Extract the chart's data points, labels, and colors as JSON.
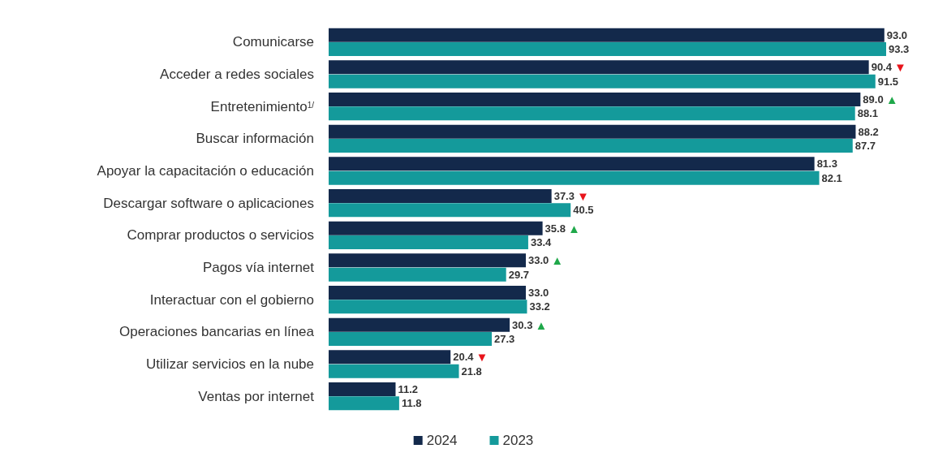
{
  "chart_data": {
    "type": "bar",
    "orientation": "horizontal",
    "categories": [
      "Comunicarse",
      "Acceder a redes sociales",
      "Entretenimiento$^{1/}$",
      "Buscar información",
      "Apoyar la capacitación o educación",
      "Descargar software o aplicaciones",
      "Comprar productos o servicios",
      "Pagos vía internet",
      "Interactuar con el gobierno",
      "Operaciones bancarias en línea",
      "Utilizar servicios en la nube",
      "Ventas por internet"
    ],
    "series": [
      {
        "name": "2024",
        "color": "#13294b",
        "values": [
          93.0,
          90.4,
          89.0,
          88.2,
          81.3,
          37.3,
          35.8,
          33.0,
          33.0,
          30.3,
          20.4,
          11.2
        ],
        "value_labels": [
          "93.0",
          "90.4 ▼",
          "89.0 ▲",
          "88.2",
          "81.3",
          "37.3 ▼",
          "35.8 ▲",
          "33.0 ▲",
          "33.0",
          "30.3 ▲",
          "20.4 ▼",
          "11.2"
        ]
      },
      {
        "name": "2023",
        "color": "#149a9b",
        "values": [
          93.3,
          91.5,
          88.1,
          87.7,
          82.1,
          40.5,
          33.4,
          29.7,
          33.2,
          27.3,
          21.8,
          11.8
        ],
        "value_labels": [
          "93.3",
          "91.5",
          "88.1",
          "87.7",
          "82.1",
          "40.5",
          "33.4",
          "29.7",
          "33.2",
          "27.3",
          "21.8",
          "11.8"
        ]
      }
    ],
    "legend": "bottom"
  }
}
